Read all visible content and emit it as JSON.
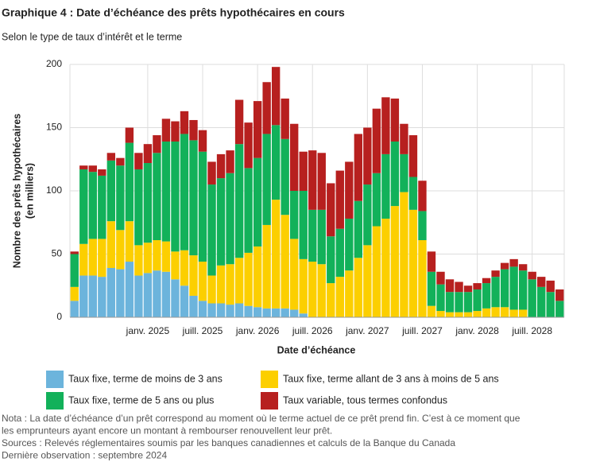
{
  "chart_data": {
    "type": "stacked_bar",
    "title": "Graphique 4 : Date d’échéance des prêts hypothécaires en cours",
    "subtitle": "Selon le type de taux d’intérêt et le terme",
    "y_label_lines": [
      "Nombre des prêts hypothécaires",
      "(en milliers)"
    ],
    "x_label": "Date d’échéance",
    "categories": [
      null,
      null,
      null,
      null,
      null,
      null,
      null,
      null,
      "janv. 2025",
      null,
      null,
      null,
      null,
      null,
      "juill. 2025",
      null,
      null,
      null,
      null,
      null,
      "janv. 2026",
      null,
      null,
      null,
      null,
      null,
      "juill. 2026",
      null,
      null,
      null,
      null,
      null,
      "janv. 2027",
      null,
      null,
      null,
      null,
      null,
      "juill. 2027",
      null,
      null,
      null,
      null,
      null,
      "janv. 2028",
      null,
      null,
      null,
      null,
      null,
      "juill. 2028",
      null,
      null,
      null
    ],
    "series": [
      {
        "name": "Taux fixe, terme de moins de 3 ans",
        "color": "#6cb4dc",
        "values": [
          13,
          33,
          33,
          32,
          39,
          38,
          44,
          33,
          35,
          37,
          36,
          30,
          25,
          17,
          13,
          11,
          11,
          10,
          11,
          9,
          8,
          7,
          7,
          7,
          6,
          3,
          0,
          0,
          0,
          0,
          0,
          0,
          0,
          0,
          0,
          0,
          0,
          0,
          0,
          0,
          0,
          0,
          0,
          0,
          0,
          0,
          0,
          0,
          0,
          0,
          0,
          0,
          0,
          0
        ]
      },
      {
        "name": "Taux fixe, terme allant de 3 ans à moins de 5 ans",
        "color": "#fccf00",
        "values": [
          11,
          25,
          29,
          30,
          37,
          31,
          32,
          24,
          24,
          24,
          24,
          22,
          28,
          32,
          31,
          22,
          30,
          32,
          36,
          42,
          48,
          66,
          86,
          74,
          56,
          43,
          44,
          42,
          27,
          32,
          37,
          47,
          57,
          72,
          78,
          88,
          99,
          85,
          61,
          9,
          5,
          4,
          4,
          4,
          5,
          7,
          8,
          8,
          6,
          6,
          0,
          0,
          0,
          0
        ]
      },
      {
        "name": "Taux fixe, terme de 5 ans ou plus",
        "color": "#12b15a",
        "values": [
          26,
          59,
          53,
          50,
          48,
          51,
          62,
          60,
          63,
          69,
          79,
          87,
          92,
          91,
          87,
          72,
          69,
          72,
          90,
          67,
          70,
          72,
          59,
          60,
          38,
          54,
          41,
          43,
          37,
          38,
          41,
          45,
          48,
          42,
          51,
          51,
          30,
          26,
          23,
          27,
          21,
          16,
          16,
          16,
          17,
          20,
          24,
          30,
          34,
          31,
          30,
          24,
          20,
          13
        ]
      },
      {
        "name": "Taux variable, tous termes confondus",
        "color": "#b7201f",
        "values": [
          2,
          3,
          5,
          5,
          6,
          6,
          12,
          13,
          15,
          14,
          18,
          16,
          18,
          16,
          17,
          18,
          19,
          18,
          35,
          36,
          45,
          41,
          46,
          32,
          53,
          31,
          47,
          45,
          42,
          46,
          45,
          53,
          45,
          51,
          45,
          34,
          24,
          33,
          24,
          16,
          10,
          10,
          8,
          5,
          5,
          4,
          5,
          5,
          6,
          5,
          6,
          8,
          9,
          9
        ]
      }
    ],
    "ylim": [
      0,
      200
    ],
    "yticks": [
      0,
      50,
      100,
      150,
      200
    ],
    "grid": true,
    "notes": [
      "Nota : La date d’échéance d’un prêt correspond au moment où le terme actuel de ce prêt prend fin. C’est à ce moment que",
      "les emprunteurs ayant encore un montant à rembourser renouvellent leur prêt.",
      "Sources : Relevés réglementaires soumis par les banques canadiennes et calculs de la Banque du Canada",
      "Dernière observation : septembre 2024"
    ]
  }
}
